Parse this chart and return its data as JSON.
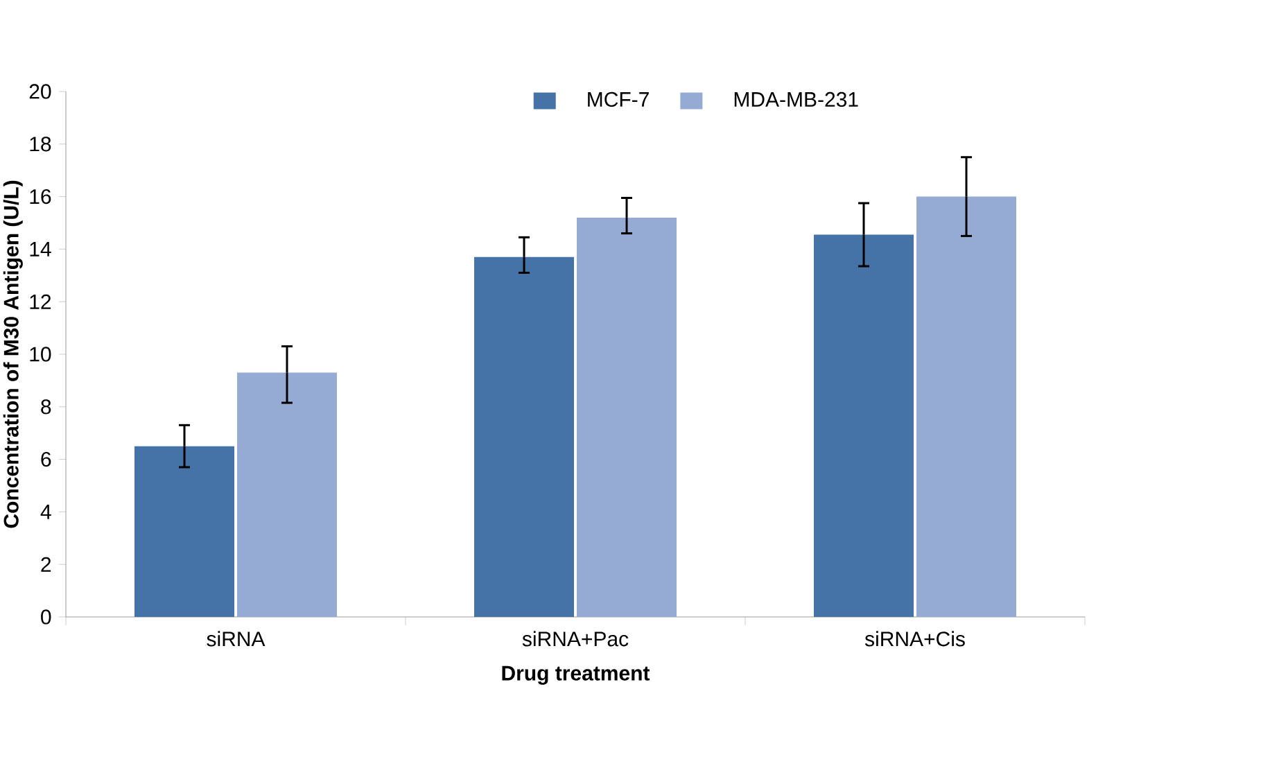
{
  "chart_data": {
    "type": "bar",
    "xlabel": "Drug treatment",
    "ylabel": "Concentration of M30 Antigen (U/L)",
    "categories": [
      "siRNA",
      "siRNA+Pac",
      "siRNA+Cis"
    ],
    "series": [
      {
        "name": "MCF-7",
        "color": "#4572a7",
        "values": [
          6.5,
          13.7,
          14.55
        ],
        "errors": [
          [
            5.7,
            7.3
          ],
          [
            13.1,
            14.45
          ],
          [
            13.35,
            15.75
          ]
        ]
      },
      {
        "name": "MDA-MB-231",
        "color": "#95abd4",
        "values": [
          9.3,
          15.2,
          16.0
        ],
        "errors": [
          [
            8.15,
            10.3
          ],
          [
            14.6,
            15.95
          ],
          [
            14.5,
            17.5
          ]
        ]
      }
    ],
    "ylim": [
      0,
      20
    ],
    "yticks": [
      0,
      2,
      4,
      6,
      8,
      10,
      12,
      14,
      16,
      18,
      20
    ],
    "grid": false,
    "legend": "top"
  }
}
